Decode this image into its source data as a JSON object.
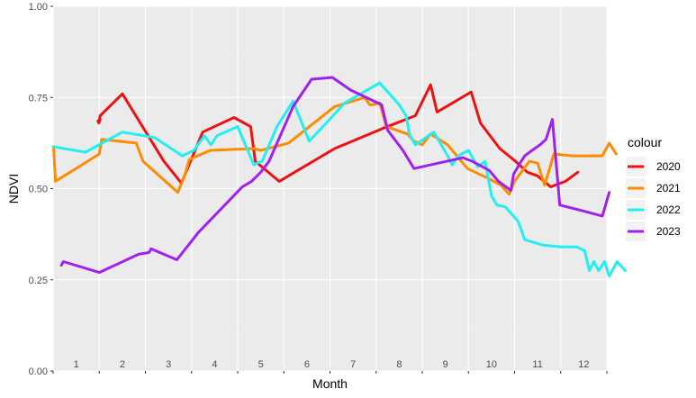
{
  "chart_data": {
    "type": "line",
    "xlabel": "Month",
    "ylabel": "NDVI",
    "xlim": [
      0.5,
      12.5
    ],
    "ylim": [
      0,
      1
    ],
    "x_ticks": [
      1,
      2,
      3,
      4,
      5,
      6,
      7,
      8,
      9,
      10,
      11,
      12
    ],
    "y_ticks": [
      0,
      0.25,
      0.5,
      0.75,
      1
    ],
    "y_tick_labels": [
      "0.00",
      "0.25",
      "0.50",
      "0.75",
      "1.00"
    ],
    "grid": true,
    "legend": {
      "title": "colour",
      "position": "right"
    },
    "series": [
      {
        "name": "2020",
        "color": "#ee1111",
        "x": [
          1.47,
          1.52,
          1.49,
          1.52,
          2.0,
          2.9,
          3.28,
          3.74,
          4.42,
          4.78,
          4.88,
          5.4,
          6.6,
          7.64,
          8.35,
          8.68,
          8.82,
          9.56,
          9.76,
          10.18,
          10.52,
          10.78,
          11.0,
          11.28,
          11.6,
          11.87
        ],
        "y": [
          0.685,
          0.69,
          0.68,
          0.7,
          0.76,
          0.575,
          0.515,
          0.655,
          0.695,
          0.67,
          0.575,
          0.52,
          0.61,
          0.665,
          0.7,
          0.785,
          0.71,
          0.765,
          0.68,
          0.61,
          0.575,
          0.545,
          0.535,
          0.505,
          0.52,
          0.545
        ]
      },
      {
        "name": "2021",
        "color": "#ff8c00",
        "x": [
          0.51,
          0.55,
          1.5,
          1.55,
          2.3,
          2.45,
          3.2,
          3.35,
          3.45,
          3.9,
          4.85,
          5.0,
          5.6,
          6.6,
          7.25,
          7.36,
          7.42,
          7.58,
          7.72,
          8.18,
          8.32,
          8.5,
          8.68,
          9.05,
          9.48,
          9.9,
          10.2,
          10.38,
          10.5,
          10.82,
          11.0,
          11.15,
          11.25,
          11.35,
          11.75,
          12.4,
          12.55,
          12.7
        ],
        "y": [
          0.615,
          0.52,
          0.595,
          0.635,
          0.625,
          0.575,
          0.49,
          0.535,
          0.58,
          0.605,
          0.61,
          0.605,
          0.625,
          0.725,
          0.75,
          0.73,
          0.73,
          0.735,
          0.67,
          0.65,
          0.63,
          0.62,
          0.65,
          0.62,
          0.555,
          0.53,
          0.51,
          0.485,
          0.52,
          0.575,
          0.57,
          0.51,
          0.55,
          0.595,
          0.59,
          0.59,
          0.625,
          0.595
        ]
      },
      {
        "name": "2022",
        "color": "#22f0f0",
        "x": [
          0.5,
          1.2,
          2.0,
          2.7,
          3.3,
          3.55,
          3.78,
          3.92,
          4.05,
          4.5,
          4.85,
          4.92,
          5.03,
          5.35,
          5.7,
          6.05,
          6.42,
          6.82,
          7.58,
          8.0,
          8.15,
          8.22,
          8.35,
          8.75,
          9.05,
          9.15,
          9.28,
          9.5,
          9.7,
          9.86,
          10.0,
          10.12,
          10.3,
          10.58,
          10.72,
          11.12,
          11.52,
          11.85,
          12.02,
          12.12,
          12.22,
          12.32,
          12.45,
          12.55,
          12.72,
          12.9
        ],
        "y": [
          0.615,
          0.6,
          0.655,
          0.64,
          0.59,
          0.605,
          0.645,
          0.62,
          0.645,
          0.67,
          0.565,
          0.57,
          0.575,
          0.67,
          0.74,
          0.63,
          0.68,
          0.735,
          0.79,
          0.73,
          0.7,
          0.65,
          0.62,
          0.655,
          0.59,
          0.565,
          0.59,
          0.605,
          0.56,
          0.575,
          0.48,
          0.455,
          0.45,
          0.41,
          0.36,
          0.345,
          0.34,
          0.34,
          0.33,
          0.275,
          0.3,
          0.275,
          0.3,
          0.26,
          0.3,
          0.275
        ]
      },
      {
        "name": "2023",
        "color": "#a020f0",
        "x": [
          0.68,
          0.72,
          1.5,
          2.35,
          2.58,
          2.62,
          2.9,
          3.18,
          3.65,
          4.6,
          4.8,
          5.0,
          5.18,
          5.7,
          6.1,
          6.55,
          6.95,
          7.62,
          7.75,
          8.08,
          8.32,
          9.38,
          9.58,
          9.95,
          10.15,
          10.42,
          10.48,
          10.62,
          10.72,
          10.88,
          11.05,
          11.18,
          11.32,
          11.48,
          11.95,
          12.4,
          12.45,
          12.55
        ],
        "y": [
          0.29,
          0.3,
          0.27,
          0.32,
          0.325,
          0.335,
          0.32,
          0.305,
          0.38,
          0.505,
          0.52,
          0.545,
          0.575,
          0.725,
          0.8,
          0.805,
          0.77,
          0.73,
          0.66,
          0.605,
          0.555,
          0.585,
          0.575,
          0.55,
          0.52,
          0.495,
          0.54,
          0.57,
          0.59,
          0.605,
          0.62,
          0.635,
          0.69,
          0.455,
          0.44,
          0.425,
          0.445,
          0.49
        ]
      }
    ]
  }
}
